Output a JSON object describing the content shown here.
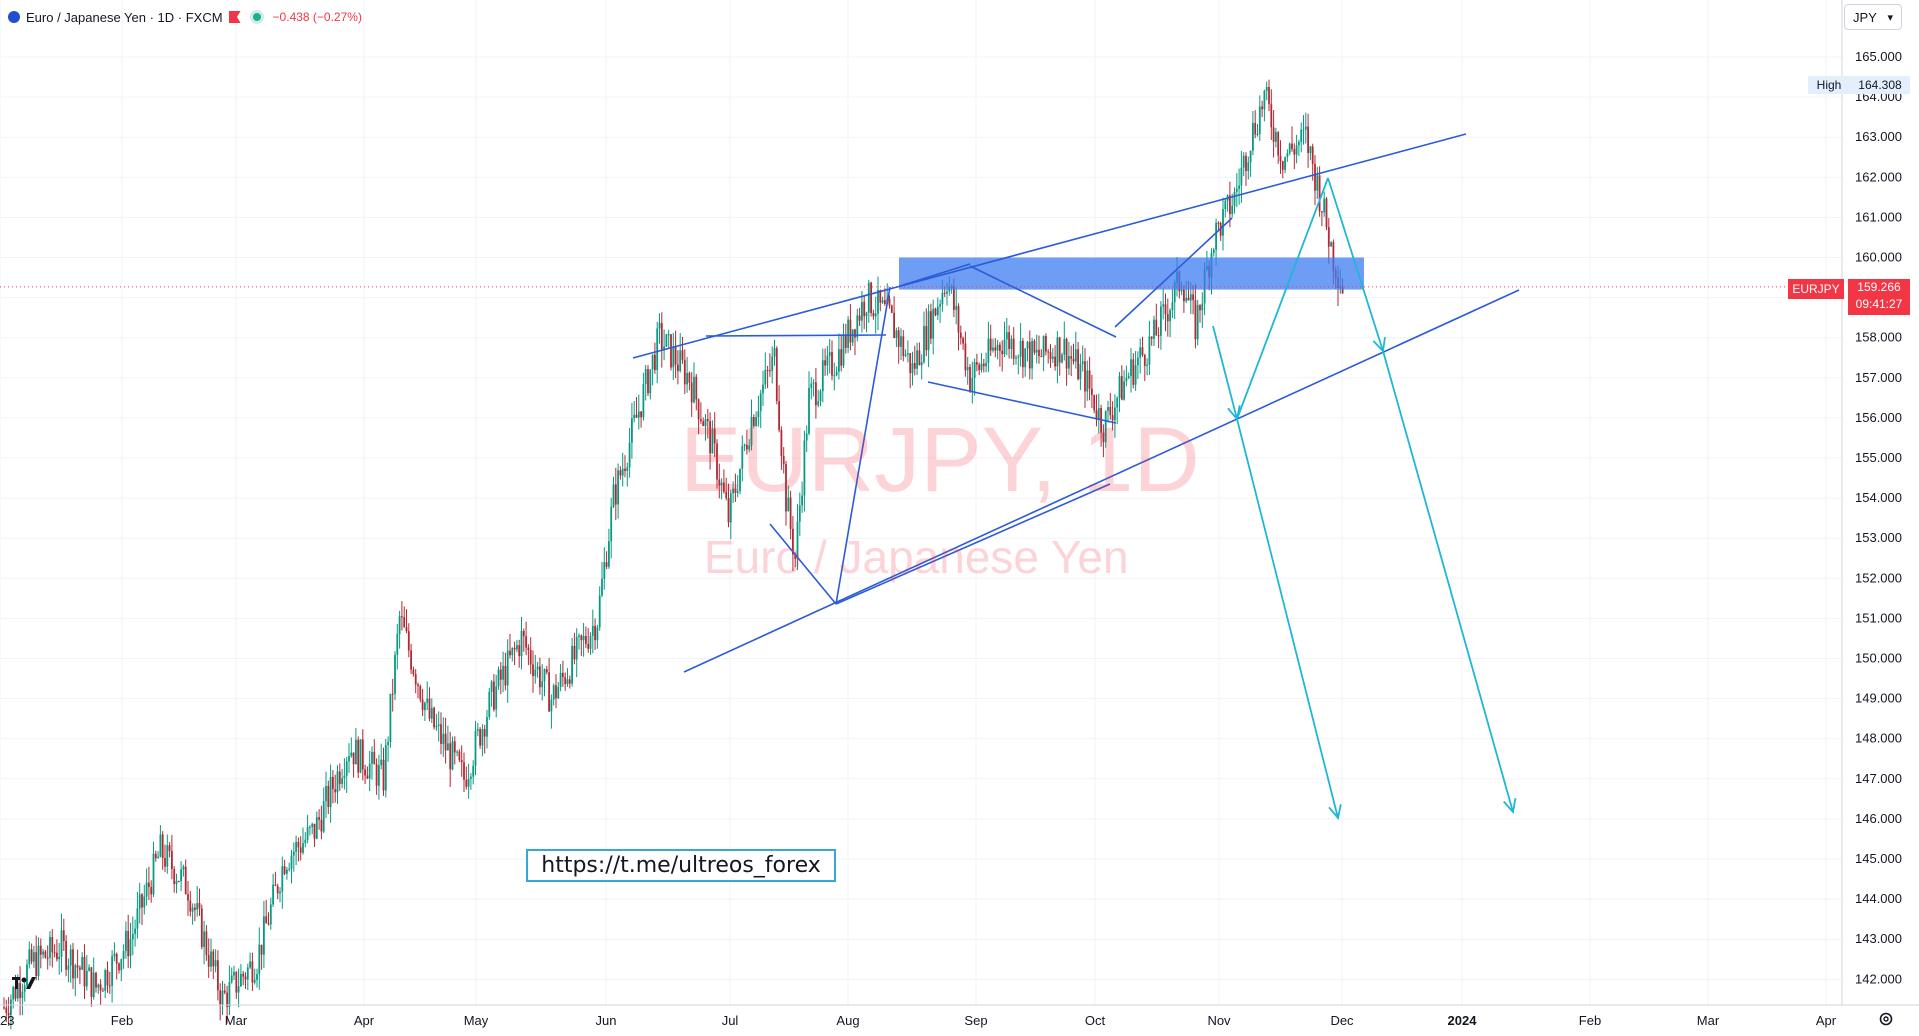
{
  "header": {
    "symbol_desc": "Euro / Japanese Yen · 1D · FXCM",
    "change": "−0.438 (−0.27%)"
  },
  "currency_button": "JPY",
  "watermark": {
    "title": "EURJPY, 1D",
    "subtitle": "Euro / Japanese Yen"
  },
  "high": {
    "label": "High",
    "value": "164.308"
  },
  "last": {
    "symbol": "EURJPY",
    "price": "159.266",
    "countdown": "09:41:27"
  },
  "link_text": "https://t.me/ultreos_forex",
  "colors": {
    "up": "#089981",
    "down": "#b22833",
    "drawing_blue": "#2b5bd8",
    "projection_cyan": "#1fb7d6",
    "zone": "#3d7cf2"
  },
  "icons": [
    "symbol-icon",
    "flag-icon",
    "status-dot-icon",
    "chevron-down-icon",
    "tradingview-logo-icon",
    "gear-icon"
  ],
  "chart_data": {
    "type": "candlestick",
    "symbol": "EURJPY",
    "interval": "1D",
    "y_ticks": [
      "165.000",
      "164.000",
      "163.000",
      "162.000",
      "161.000",
      "160.000",
      "159.000",
      "158.000",
      "157.000",
      "156.000",
      "155.000",
      "154.000",
      "153.000",
      "152.000",
      "151.000",
      "150.000",
      "149.000",
      "148.000",
      "147.000",
      "146.000",
      "145.000",
      "144.000",
      "143.000",
      "142.000"
    ],
    "x_ticks": [
      "23",
      "Feb",
      "Mar",
      "Apr",
      "May",
      "Jun",
      "Jul",
      "Aug",
      "Sep",
      "Oct",
      "Nov",
      "Dec",
      "2024",
      "Feb",
      "Mar",
      "Apr"
    ],
    "ylim": [
      141.6,
      165.8
    ],
    "close_path": [
      [
        0,
        141.3
      ],
      [
        12,
        142.4
      ],
      [
        25,
        142.8
      ],
      [
        40,
        141.8
      ],
      [
        55,
        143.0
      ],
      [
        68,
        145.2
      ],
      [
        80,
        144.3
      ],
      [
        95,
        141.5
      ],
      [
        110,
        142.5
      ],
      [
        122,
        145.0
      ],
      [
        135,
        145.7
      ],
      [
        150,
        147.8
      ],
      [
        165,
        147.0
      ],
      [
        172,
        151.0
      ],
      [
        185,
        148.5
      ],
      [
        200,
        147.0
      ],
      [
        212,
        149.0
      ],
      [
        225,
        150.5
      ],
      [
        238,
        149.0
      ],
      [
        248,
        150.0
      ],
      [
        258,
        151.0
      ],
      [
        265,
        154.0
      ],
      [
        275,
        156.0
      ],
      [
        285,
        158.0
      ],
      [
        298,
        157.0
      ],
      [
        308,
        155.3
      ],
      [
        315,
        153.5
      ],
      [
        325,
        156.0
      ],
      [
        335,
        157.5
      ],
      [
        340,
        154.0
      ],
      [
        344,
        152.5
      ],
      [
        350,
        156.5
      ],
      [
        362,
        157.5
      ],
      [
        375,
        159.0
      ],
      [
        385,
        158.5
      ],
      [
        395,
        157.2
      ],
      [
        410,
        159.5
      ],
      [
        420,
        157.0
      ],
      [
        435,
        158.0
      ],
      [
        448,
        157.5
      ],
      [
        460,
        157.8
      ],
      [
        470,
        157.0
      ],
      [
        478,
        155.8
      ],
      [
        488,
        157.0
      ],
      [
        500,
        158.0
      ],
      [
        512,
        159.5
      ],
      [
        518,
        158.3
      ],
      [
        526,
        160.5
      ],
      [
        535,
        161.5
      ],
      [
        542,
        163.0
      ],
      [
        548,
        164.0
      ],
      [
        556,
        162.5
      ],
      [
        566,
        163.0
      ],
      [
        572,
        161.6
      ],
      [
        578,
        160.0
      ],
      [
        582,
        159.3
      ]
    ],
    "zone": {
      "low": 159.2,
      "high": 160.0
    },
    "current_price": 159.266,
    "high_value": 164.308
  }
}
